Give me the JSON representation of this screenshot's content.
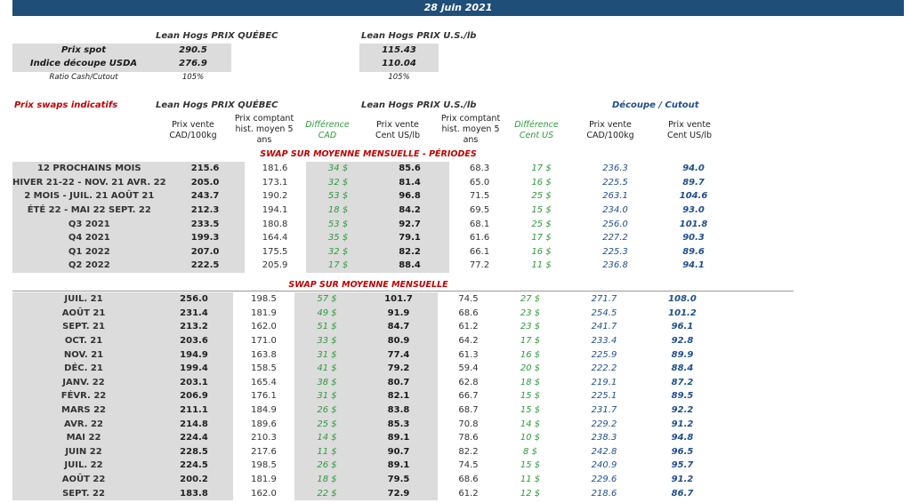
{
  "date": "28 juin 2021",
  "spot": {
    "header_qc": "Lean Hogs PRIX QUÉBEC",
    "header_us": "Lean Hogs PRIX U.S./lb",
    "rows": [
      {
        "label": "Prix spot",
        "qc": "290.5",
        "us": "115.43"
      },
      {
        "label": "Indice découpe USDA",
        "qc": "276.9",
        "us": "110.04"
      }
    ],
    "ratio_label": "Ratio Cash/Cutout",
    "ratio_qc": "105%",
    "ratio_us": "105%"
  },
  "swaps": {
    "title": "Prix swaps indicatifs",
    "group_qc": "Lean Hogs PRIX QUÉBEC",
    "group_us": "Lean Hogs PRIX U.S./lb",
    "group_cut": "Découpe / Cutout",
    "col_qc_price": "Prix vente CAD/100kg",
    "col_qc_hist": "Prix comptant hist. moyen 5 ans",
    "col_qc_diff": "Différence CAD",
    "col_us_price": "Prix vente Cent US/lb",
    "col_us_hist": "Prix comptant hist. moyen 5 ans",
    "col_us_diff": "Différence Cent US",
    "col_cut_cad": "Prix vente CAD/100kg",
    "col_cut_us": "Prix vente Cent US/lb",
    "section_periods": "SWAP SUR MOYENNE MENSUELLE - PÉRIODES",
    "section_monthly": "SWAP SUR MOYENNE MENSUELLE",
    "periods": [
      [
        "12 PROCHAINS MOIS",
        "215.6",
        "181.6",
        "34 $",
        "85.6",
        "68.3",
        "17 $",
        "236.3",
        "94.0"
      ],
      [
        "HIVER 21-22 - NOV. 21 AVR. 22",
        "205.0",
        "173.1",
        "32 $",
        "81.4",
        "65.0",
        "16 $",
        "225.5",
        "89.7"
      ],
      [
        "2 MOIS - JUIL. 21 AOÛT 21",
        "243.7",
        "190.2",
        "53 $",
        "96.8",
        "71.5",
        "25 $",
        "263.1",
        "104.6"
      ],
      [
        "ÉTÉ 22 - MAI 22 SEPT. 22",
        "212.3",
        "194.1",
        "18 $",
        "84.2",
        "69.5",
        "15 $",
        "234.0",
        "93.0"
      ],
      [
        "Q3 2021",
        "233.5",
        "180.8",
        "53 $",
        "92.7",
        "68.1",
        "25 $",
        "256.0",
        "101.8"
      ],
      [
        "Q4 2021",
        "199.3",
        "164.4",
        "35 $",
        "79.1",
        "61.6",
        "17 $",
        "227.2",
        "90.3"
      ],
      [
        "Q1 2022",
        "207.0",
        "175.5",
        "32 $",
        "82.2",
        "66.1",
        "16 $",
        "225.3",
        "89.6"
      ],
      [
        "Q2 2022",
        "222.5",
        "205.9",
        "17 $",
        "88.4",
        "77.2",
        "11 $",
        "236.8",
        "94.1"
      ]
    ],
    "monthly": [
      [
        "JUIL. 21",
        "256.0",
        "198.5",
        "57 $",
        "101.7",
        "74.5",
        "27 $",
        "271.7",
        "108.0"
      ],
      [
        "AOÛT 21",
        "231.4",
        "181.9",
        "49 $",
        "91.9",
        "68.6",
        "23 $",
        "254.5",
        "101.2"
      ],
      [
        "SEPT. 21",
        "213.2",
        "162.0",
        "51 $",
        "84.7",
        "61.2",
        "23 $",
        "241.7",
        "96.1"
      ],
      [
        "OCT. 21",
        "203.6",
        "171.0",
        "33 $",
        "80.9",
        "64.2",
        "17 $",
        "233.4",
        "92.8"
      ],
      [
        "NOV. 21",
        "194.9",
        "163.8",
        "31 $",
        "77.4",
        "61.3",
        "16 $",
        "225.9",
        "89.9"
      ],
      [
        "DÉC. 21",
        "199.4",
        "158.5",
        "41 $",
        "79.2",
        "59.4",
        "20 $",
        "222.2",
        "88.4"
      ],
      [
        "JANV. 22",
        "203.1",
        "165.4",
        "38 $",
        "80.7",
        "62.8",
        "18 $",
        "219.1",
        "87.2"
      ],
      [
        "FÉVR. 22",
        "206.9",
        "176.1",
        "31 $",
        "82.1",
        "66.7",
        "15 $",
        "225.1",
        "89.5"
      ],
      [
        "MARS 22",
        "211.1",
        "184.9",
        "26 $",
        "83.8",
        "68.7",
        "15 $",
        "231.7",
        "92.2"
      ],
      [
        "AVR. 22",
        "214.8",
        "189.6",
        "25 $",
        "85.3",
        "70.8",
        "14 $",
        "229.2",
        "91.2"
      ],
      [
        "MAI 22",
        "224.4",
        "210.3",
        "14 $",
        "89.1",
        "78.6",
        "10 $",
        "238.3",
        "94.8"
      ],
      [
        "JUIN 22",
        "228.5",
        "217.6",
        "11 $",
        "90.7",
        "82.2",
        "8 $",
        "242.8",
        "96.5"
      ],
      [
        "JUIL. 22",
        "224.5",
        "198.5",
        "26 $",
        "89.1",
        "74.5",
        "15 $",
        "240.9",
        "95.7"
      ],
      [
        "AOÛT 22",
        "200.2",
        "181.9",
        "18 $",
        "79.5",
        "68.6",
        "11 $",
        "229.6",
        "91.2"
      ],
      [
        "SEPT. 22",
        "183.8",
        "162.0",
        "22 $",
        "72.9",
        "61.2",
        "12 $",
        "218.6",
        "86.7"
      ]
    ]
  }
}
